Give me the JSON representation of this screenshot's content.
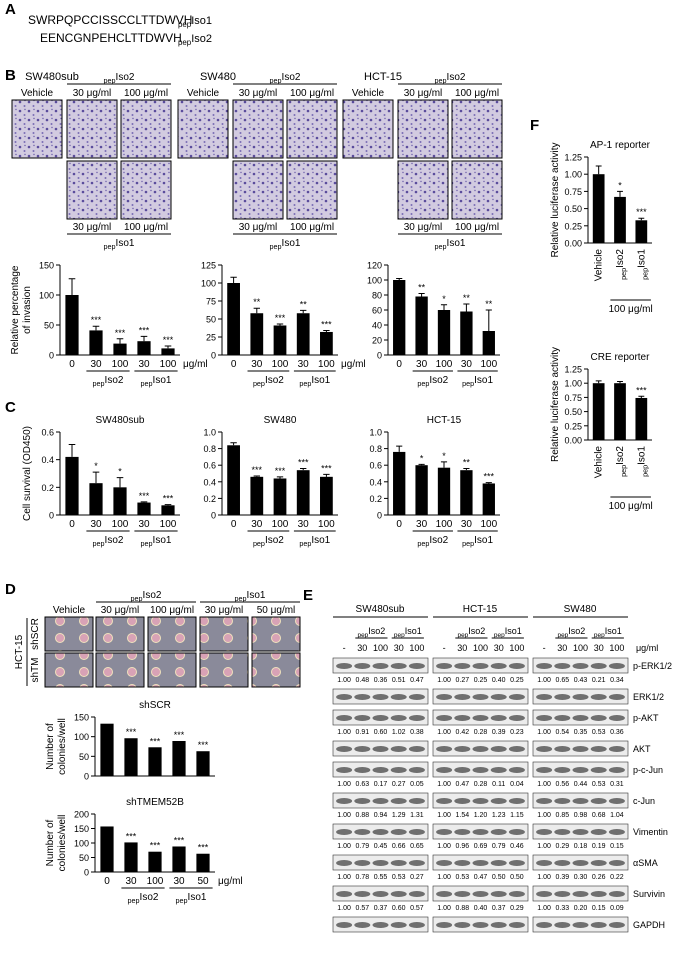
{
  "panel_labels": [
    "A",
    "B",
    "C",
    "D",
    "E",
    "F"
  ],
  "sequences": [
    {
      "sequence": "SWRPQPCCISSCCLTTDWVH",
      "peptide": {
        "sub": "pep",
        "name": "Iso1"
      }
    },
    {
      "sequence": "EENCGNPEHCLTTDWVH",
      "peptide": {
        "sub": "pep",
        "name": "Iso2"
      }
    }
  ],
  "invasion_images": {
    "cell_lines": [
      "SW480sub",
      "SW480",
      "HCT-15"
    ],
    "vehicle": "Vehicle",
    "top_group": {
      "sub": "pep",
      "name": "Iso2"
    },
    "bottom_group": {
      "sub": "pep",
      "name": "Iso1"
    },
    "doses": [
      "30 μg/ml",
      "100 μg/ml"
    ]
  },
  "colony_images": {
    "cell_line": "HCT-15",
    "rows": [
      "shSCR",
      "shTM"
    ],
    "columns": [
      "Vehicle",
      "30 μg/ml",
      "100 μg/ml",
      "30 μg/ml",
      "50 μg/ml"
    ],
    "groups": [
      {
        "sub": "pep",
        "name": "Iso2"
      },
      {
        "sub": "pep",
        "name": "Iso1"
      }
    ]
  },
  "western_blot": {
    "cell_lines": [
      "SW480sub",
      "HCT-15",
      "SW480"
    ],
    "lanes": [
      "-",
      "30",
      "100",
      "30",
      "100"
    ],
    "groups": [
      {
        "sub": "pep",
        "name": "Iso2"
      },
      {
        "sub": "pep",
        "name": "Iso1"
      }
    ],
    "unit": "μg/ml",
    "rows": [
      {
        "protein": "p-ERK1/2",
        "quantification": [
          [
            "1.00",
            "0.48",
            "0.36",
            "0.51",
            "0.47"
          ],
          [
            "1.00",
            "0.27",
            "0.25",
            "0.40",
            "0.25"
          ],
          [
            "1.00",
            "0.65",
            "0.43",
            "0.21",
            "0.34"
          ]
        ]
      },
      {
        "protein": "ERK1/2"
      },
      {
        "protein": "p-AKT",
        "quantification": [
          [
            "1.00",
            "0.91",
            "0.60",
            "1.02",
            "0.38"
          ],
          [
            "1.00",
            "0.42",
            "0.28",
            "0.39",
            "0.23"
          ],
          [
            "1.00",
            "0.54",
            "0.35",
            "0.53",
            "0.36"
          ]
        ]
      },
      {
        "protein": "AKT"
      },
      {
        "protein": "p-c-Jun",
        "quantification": [
          [
            "1.00",
            "0.63",
            "0.17",
            "0.27",
            "0.05"
          ],
          [
            "1.00",
            "0.47",
            "0.28",
            "0.11",
            "0.04"
          ],
          [
            "1.00",
            "0.56",
            "0.44",
            "0.53",
            "0.31"
          ]
        ]
      },
      {
        "protein": "c-Jun",
        "quantification": [
          [
            "1.00",
            "0.88",
            "0.94",
            "1.29",
            "1.31"
          ],
          [
            "1.00",
            "1.54",
            "1.20",
            "1.23",
            "1.15"
          ],
          [
            "1.00",
            "0.85",
            "0.98",
            "0.68",
            "1.04"
          ]
        ]
      },
      {
        "protein": "Vimentin",
        "quantification": [
          [
            "1.00",
            "0.79",
            "0.45",
            "0.66",
            "0.65"
          ],
          [
            "1.00",
            "0.96",
            "0.69",
            "0.79",
            "0.46"
          ],
          [
            "1.00",
            "0.29",
            "0.18",
            "0.19",
            "0.15"
          ]
        ]
      },
      {
        "protein": "αSMA",
        "quantification": [
          [
            "1.00",
            "0.78",
            "0.55",
            "0.53",
            "0.27"
          ],
          [
            "1.00",
            "0.53",
            "0.47",
            "0.50",
            "0.50"
          ],
          [
            "1.00",
            "0.39",
            "0.30",
            "0.26",
            "0.22"
          ]
        ]
      },
      {
        "protein": "Survivin",
        "quantification": [
          [
            "1.00",
            "0.57",
            "0.37",
            "0.60",
            "0.57"
          ],
          [
            "1.00",
            "0.88",
            "0.40",
            "0.37",
            "0.29"
          ],
          [
            "1.00",
            "0.33",
            "0.20",
            "0.15",
            "0.09"
          ]
        ]
      },
      {
        "protein": "GAPDH"
      }
    ]
  },
  "chart_data": [
    {
      "type": "bar",
      "ylabel": [
        "Relative percentage",
        "of invasion"
      ],
      "categories": [
        "0",
        "30",
        "100",
        "30",
        "100"
      ],
      "values": [
        100,
        41,
        19,
        23,
        11
      ],
      "errors": [
        27,
        7,
        8,
        8,
        4
      ],
      "significance": [
        null,
        "***",
        "***",
        "***",
        "***"
      ],
      "ylim": [
        0,
        150
      ],
      "yticks": [
        0,
        50,
        100,
        150
      ],
      "groups": [
        {
          "sub": "pep",
          "name": "Iso2"
        },
        {
          "sub": "pep",
          "name": "Iso1"
        }
      ],
      "x_unit": "μg/ml",
      "color": "#000000"
    },
    {
      "type": "bar",
      "categories": [
        "0",
        "30",
        "100",
        "30",
        "100"
      ],
      "values": [
        100,
        58,
        41,
        58,
        32
      ],
      "errors": [
        8,
        7,
        2,
        4,
        2
      ],
      "significance": [
        null,
        "**",
        "***",
        "**",
        "***"
      ],
      "ylim": [
        0,
        125
      ],
      "yticks": [
        0,
        25,
        50,
        75,
        100,
        125
      ],
      "groups": [
        {
          "sub": "pep",
          "name": "Iso2"
        },
        {
          "sub": "pep",
          "name": "Iso1"
        }
      ],
      "x_unit": "μg/ml",
      "color": "#000000"
    },
    {
      "type": "bar",
      "categories": [
        "0",
        "30",
        "100",
        "30",
        "100"
      ],
      "values": [
        100,
        78,
        60,
        58,
        32
      ],
      "errors": [
        2,
        4,
        7,
        10,
        28
      ],
      "significance": [
        null,
        "**",
        "*",
        "**",
        "**"
      ],
      "ylim": [
        0,
        120
      ],
      "yticks": [
        0,
        20,
        40,
        60,
        80,
        100,
        120
      ],
      "groups": [
        {
          "sub": "pep",
          "name": "Iso2"
        },
        {
          "sub": "pep",
          "name": "Iso1"
        }
      ],
      "color": "#000000"
    },
    {
      "type": "bar",
      "title": "SW480sub",
      "ylabel": [
        "Cell survival (OD450)"
      ],
      "categories": [
        "0",
        "30",
        "100",
        "30",
        "100"
      ],
      "values": [
        0.42,
        0.23,
        0.2,
        0.09,
        0.07
      ],
      "errors": [
        0.09,
        0.08,
        0.07,
        0.005,
        0.005
      ],
      "significance": [
        null,
        "*",
        "*",
        "***",
        "***"
      ],
      "ylim": [
        0,
        0.6
      ],
      "yticks": [
        0,
        0.2,
        0.4,
        0.6
      ],
      "groups": [
        {
          "sub": "pep",
          "name": "Iso2"
        },
        {
          "sub": "pep",
          "name": "Iso1"
        }
      ],
      "color": "#000000"
    },
    {
      "type": "bar",
      "title": "SW480",
      "categories": [
        "0",
        "30",
        "100",
        "30",
        "100"
      ],
      "values": [
        0.84,
        0.46,
        0.44,
        0.54,
        0.46
      ],
      "errors": [
        0.03,
        0.01,
        0.02,
        0.02,
        0.03
      ],
      "significance": [
        null,
        "***",
        "***",
        "***",
        "***"
      ],
      "ylim": [
        0,
        1
      ],
      "yticks": [
        0,
        0.2,
        0.4,
        0.6,
        0.8,
        {
          "value": 1,
          "label": "1.0"
        }
      ],
      "groups": [
        {
          "sub": "pep",
          "name": "Iso2"
        },
        {
          "sub": "pep",
          "name": "Iso1"
        }
      ],
      "color": "#000000"
    },
    {
      "type": "bar",
      "title": "HCT-15",
      "categories": [
        "0",
        "30",
        "100",
        "30",
        "100"
      ],
      "values": [
        0.76,
        0.6,
        0.57,
        0.54,
        0.38
      ],
      "errors": [
        0.07,
        0.01,
        0.07,
        0.02,
        0.01
      ],
      "significance": [
        null,
        "*",
        "*",
        "**",
        "***"
      ],
      "ylim": [
        0,
        1
      ],
      "yticks": [
        0,
        0.2,
        0.4,
        0.6,
        0.8,
        {
          "value": 1,
          "label": "1.0"
        }
      ],
      "groups": [
        {
          "sub": "pep",
          "name": "Iso2"
        },
        {
          "sub": "pep",
          "name": "Iso1"
        }
      ],
      "color": "#000000"
    },
    {
      "type": "bar",
      "title": "shSCR",
      "ylabel": [
        "Number of",
        "colonies/well"
      ],
      "values": [
        133,
        96,
        73,
        89,
        63
      ],
      "significance": [
        null,
        "***",
        "***",
        "***",
        "***"
      ],
      "ylim": [
        0,
        150
      ],
      "yticks": [
        0,
        50,
        100,
        150
      ],
      "color": "#000000"
    },
    {
      "type": "bar",
      "title": "shTMEM52B",
      "ylabel": [
        "Number of",
        "colonies/well"
      ],
      "categories": [
        "0",
        "30",
        "100",
        "30",
        "50"
      ],
      "values": [
        157,
        102,
        70,
        88,
        63
      ],
      "significance": [
        null,
        "***",
        "***",
        "***",
        "***"
      ],
      "ylim": [
        0,
        200
      ],
      "yticks": [
        0,
        50,
        100,
        150,
        200
      ],
      "groups": [
        {
          "sub": "pep",
          "name": "Iso2"
        },
        {
          "sub": "pep",
          "name": "Iso1"
        }
      ],
      "x_unit": "μg/ml",
      "color": "#000000"
    },
    {
      "type": "bar",
      "title": "AP-1 reporter",
      "ylabel": [
        "Relative luciferase activity"
      ],
      "categories": [
        "Vehicle",
        {
          "sub": "pep",
          "name": "Iso2"
        },
        {
          "sub": "pep",
          "name": "Iso1"
        }
      ],
      "values": [
        1,
        0.67,
        0.33
      ],
      "errors": [
        0.12,
        0.08,
        0.03
      ],
      "significance": [
        null,
        "*",
        "***"
      ],
      "ylim": [
        0,
        1.25
      ],
      "yticks": [
        {
          "value": 0,
          "label": "0.00"
        },
        {
          "value": 0.25,
          "label": "0.25"
        },
        {
          "value": 0.5,
          "label": "0.50"
        },
        {
          "value": 0.75,
          "label": "0.75"
        },
        {
          "value": 1,
          "label": "1.00"
        },
        {
          "value": 1.25,
          "label": "1.25"
        }
      ],
      "dose_group": "100 μg/ml",
      "color": "#000000"
    },
    {
      "type": "bar",
      "title": "CRE reporter",
      "ylabel": [
        "Relative luciferase activity"
      ],
      "categories": [
        "Vehicle",
        {
          "sub": "pep",
          "name": "Iso2"
        },
        {
          "sub": "pep",
          "name": "Iso1"
        }
      ],
      "values": [
        1,
        1,
        0.74
      ],
      "errors": [
        0.04,
        0.03,
        0.03
      ],
      "significance": [
        null,
        null,
        "***"
      ],
      "ylim": [
        0,
        1.25
      ],
      "yticks": [
        {
          "value": 0,
          "label": "0.00"
        },
        {
          "value": 0.25,
          "label": "0.25"
        },
        {
          "value": 0.5,
          "label": "0.50"
        },
        {
          "value": 0.75,
          "label": "0.75"
        },
        {
          "value": 1,
          "label": "1.00"
        },
        {
          "value": 1.25,
          "label": "1.25"
        }
      ],
      "dose_group": "100 μg/ml",
      "color": "#000000"
    }
  ]
}
